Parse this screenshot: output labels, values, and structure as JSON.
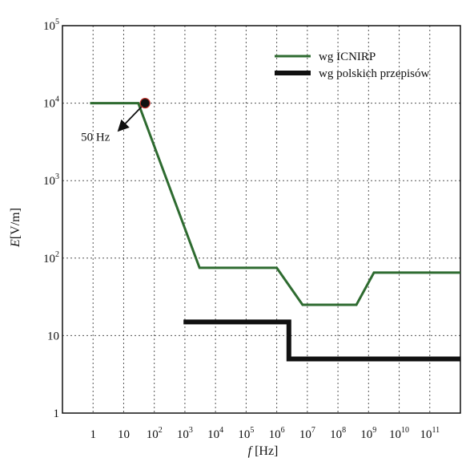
{
  "chart_data": {
    "type": "line",
    "xscale": "log",
    "yscale": "log",
    "xlim": [
      0.1,
      1000000000000
    ],
    "ylim": [
      1,
      100000
    ],
    "x_ticks": [
      {
        "base": "1",
        "exp": ""
      },
      {
        "base": "10",
        "exp": ""
      },
      {
        "base": "10",
        "exp": "2"
      },
      {
        "base": "10",
        "exp": "3"
      },
      {
        "base": "10",
        "exp": "4"
      },
      {
        "base": "10",
        "exp": "5"
      },
      {
        "base": "10",
        "exp": "6"
      },
      {
        "base": "10",
        "exp": "7"
      },
      {
        "base": "10",
        "exp": "8"
      },
      {
        "base": "10",
        "exp": "9"
      },
      {
        "base": "10",
        "exp": "10"
      },
      {
        "base": "10",
        "exp": "11"
      }
    ],
    "y_ticks": [
      {
        "base": "1",
        "exp": ""
      },
      {
        "base": "10",
        "exp": ""
      },
      {
        "base": "10",
        "exp": "2"
      },
      {
        "base": "10",
        "exp": "3"
      },
      {
        "base": "10",
        "exp": "4"
      },
      {
        "base": "10",
        "exp": "5"
      }
    ],
    "xlabel": {
      "italic": "f",
      "rest": " [Hz]"
    },
    "ylabel": {
      "italic": "E",
      "rest": "[V/m]"
    },
    "grid": true,
    "legend_position": "top-right",
    "series": [
      {
        "name": "wg ICNIRP",
        "color": "#2e6b30",
        "points": [
          [
            0.8,
            10000
          ],
          [
            30,
            10000
          ],
          [
            3000,
            75
          ],
          [
            1000000,
            75
          ],
          [
            7000000,
            25
          ],
          [
            400000000,
            25
          ],
          [
            1500000000,
            65
          ],
          [
            1000000000000,
            65
          ]
        ]
      },
      {
        "name": "wg polskich przepisów",
        "color": "#111111",
        "points": [
          [
            900,
            15
          ],
          [
            2500000,
            15
          ],
          [
            2500000,
            5
          ],
          [
            1000000000000,
            5
          ]
        ]
      }
    ],
    "annotations": [
      {
        "text": "50 Hz",
        "x": 50,
        "y": 10000
      }
    ]
  }
}
